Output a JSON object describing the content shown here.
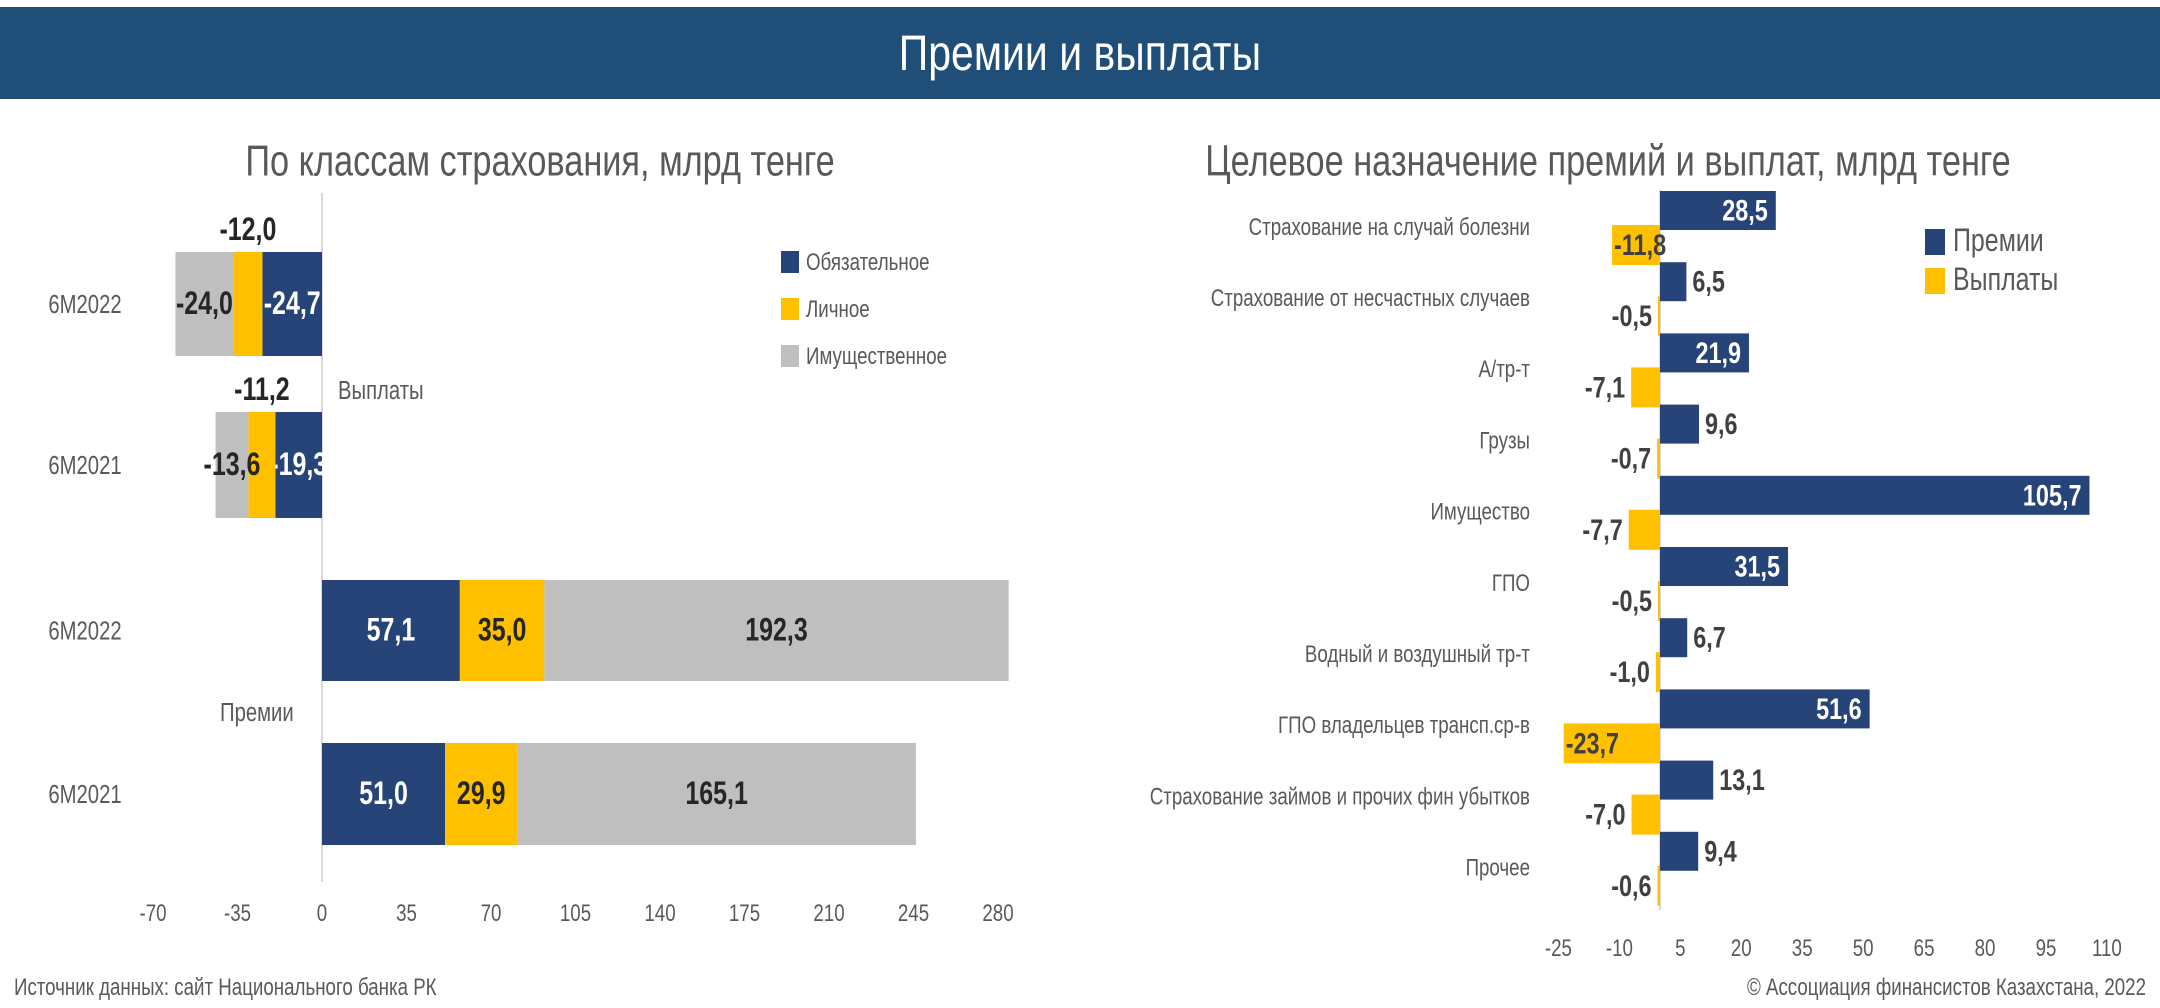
{
  "header": {
    "title": "Премии и выплаты"
  },
  "footer": {
    "source": "Источник данных: сайт Национального банка РК",
    "copyright": "© Ассоциация финансистов Казахстана, 2022"
  },
  "colors": {
    "header": "#1f4e79",
    "blue": "#264478",
    "yellow": "#ffc000",
    "gray": "#bfbfbf"
  },
  "chart_data": [
    {
      "type": "bar",
      "orientation": "horizontal",
      "stacked": true,
      "title": "По классам страхования, млрд тенге",
      "xlim": [
        -70,
        280
      ],
      "xticks": [
        "-70",
        "-35",
        "0",
        "35",
        "70",
        "105",
        "140",
        "175",
        "210",
        "245",
        "280"
      ],
      "legend_position": "top-right",
      "group_labels": {
        "payouts": "Выплаты",
        "premiums": "Премии"
      },
      "categories": [
        "6M2022",
        "6M2021",
        "6M2022",
        "6M2021"
      ],
      "category_groups": [
        "payouts",
        "payouts",
        "premiums",
        "premiums"
      ],
      "series": [
        {
          "name": "Обязательное",
          "color": "#264478",
          "values": [
            -24.7,
            -19.3,
            57.1,
            51.0
          ],
          "labels": [
            "-24,7",
            "-19,3",
            "57,1",
            "51,0"
          ]
        },
        {
          "name": "Личное",
          "color": "#ffc000",
          "values": [
            -12.0,
            -11.2,
            35.0,
            29.9
          ],
          "labels": [
            "-12,0",
            "-11,2",
            "35,0",
            "29,9"
          ]
        },
        {
          "name": "Имущественное",
          "color": "#bfbfbf",
          "values": [
            -24.0,
            -13.6,
            192.3,
            165.1
          ],
          "labels": [
            "-24,0",
            "-13,6",
            "192,3",
            "165,1"
          ]
        }
      ]
    },
    {
      "type": "bar",
      "orientation": "horizontal",
      "title": "Целевое назначение премий и выплат, млрд тенге",
      "xlim": [
        -25,
        110
      ],
      "xticks": [
        "-25",
        "-10",
        "5",
        "20",
        "35",
        "50",
        "65",
        "80",
        "95",
        "110"
      ],
      "legend_position": "top-right",
      "categories": [
        "Страхование на случай болезни",
        "Страхование от несчастных случаев",
        "А/тр-т",
        "Грузы",
        "Имущество",
        "ГПО",
        "Водный и воздушный тр-т",
        "ГПО владельцев трансп.ср-в",
        "Страхование займов и прочих фин убытков",
        "Прочее"
      ],
      "series": [
        {
          "name": "Премии",
          "color": "#264478",
          "values": [
            28.5,
            6.5,
            21.9,
            9.6,
            105.7,
            31.5,
            6.7,
            51.6,
            13.1,
            9.4
          ],
          "labels": [
            "28,5",
            "6,5",
            "21,9",
            "9,6",
            "105,7",
            "31,5",
            "6,7",
            "51,6",
            "13,1",
            "9,4"
          ]
        },
        {
          "name": "Выплаты",
          "color": "#ffc000",
          "values": [
            -11.8,
            -0.5,
            -7.1,
            -0.7,
            -7.7,
            -0.5,
            -1.0,
            -23.7,
            -7.0,
            -0.6
          ],
          "labels": [
            "-11,8",
            "-0,5",
            "-7,1",
            "-0,7",
            "-7,7",
            "-0,5",
            "-1,0",
            "-23,7",
            "-7,0",
            "-0,6"
          ]
        }
      ]
    }
  ]
}
